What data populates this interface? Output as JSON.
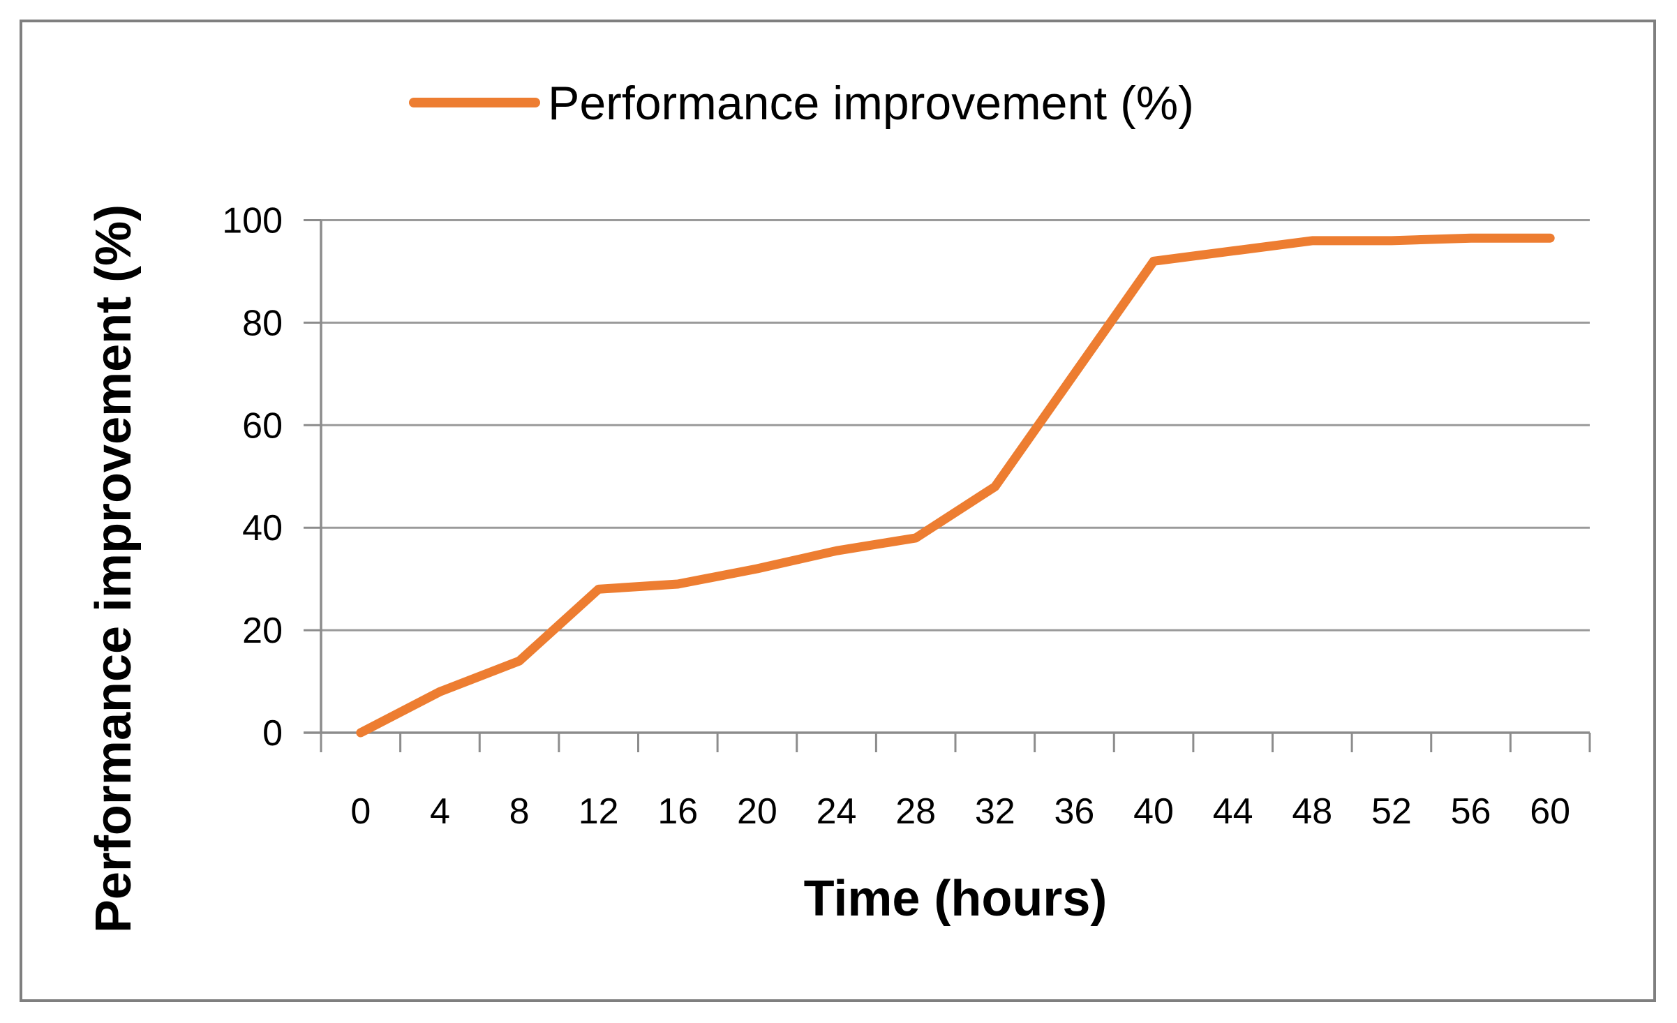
{
  "chart_data": {
    "type": "line",
    "x": [
      0,
      4,
      8,
      12,
      16,
      20,
      24,
      28,
      32,
      36,
      40,
      44,
      48,
      52,
      56,
      60
    ],
    "series": [
      {
        "name": "Performance improvement (%)",
        "values": [
          0,
          8,
          14,
          28,
          29,
          32,
          35.5,
          38,
          48,
          70,
          92,
          94,
          96,
          96,
          96.5,
          96.5
        ],
        "color": "#ED7D31"
      }
    ],
    "xlabel": "Time (hours)",
    "ylabel": "Performance improvement (%)",
    "ylim": [
      0,
      100
    ],
    "yticks": [
      0,
      20,
      40,
      60,
      80,
      100
    ],
    "grid": true,
    "legend_position": "top"
  },
  "legend": {
    "label": "Performance improvement (%)"
  },
  "colors": {
    "series": "#ED7D31",
    "grid": "#9A9A9A",
    "axis": "#8C8C8C",
    "border": "#7F7F7F",
    "text": "#000000",
    "background": "#FFFFFF"
  }
}
